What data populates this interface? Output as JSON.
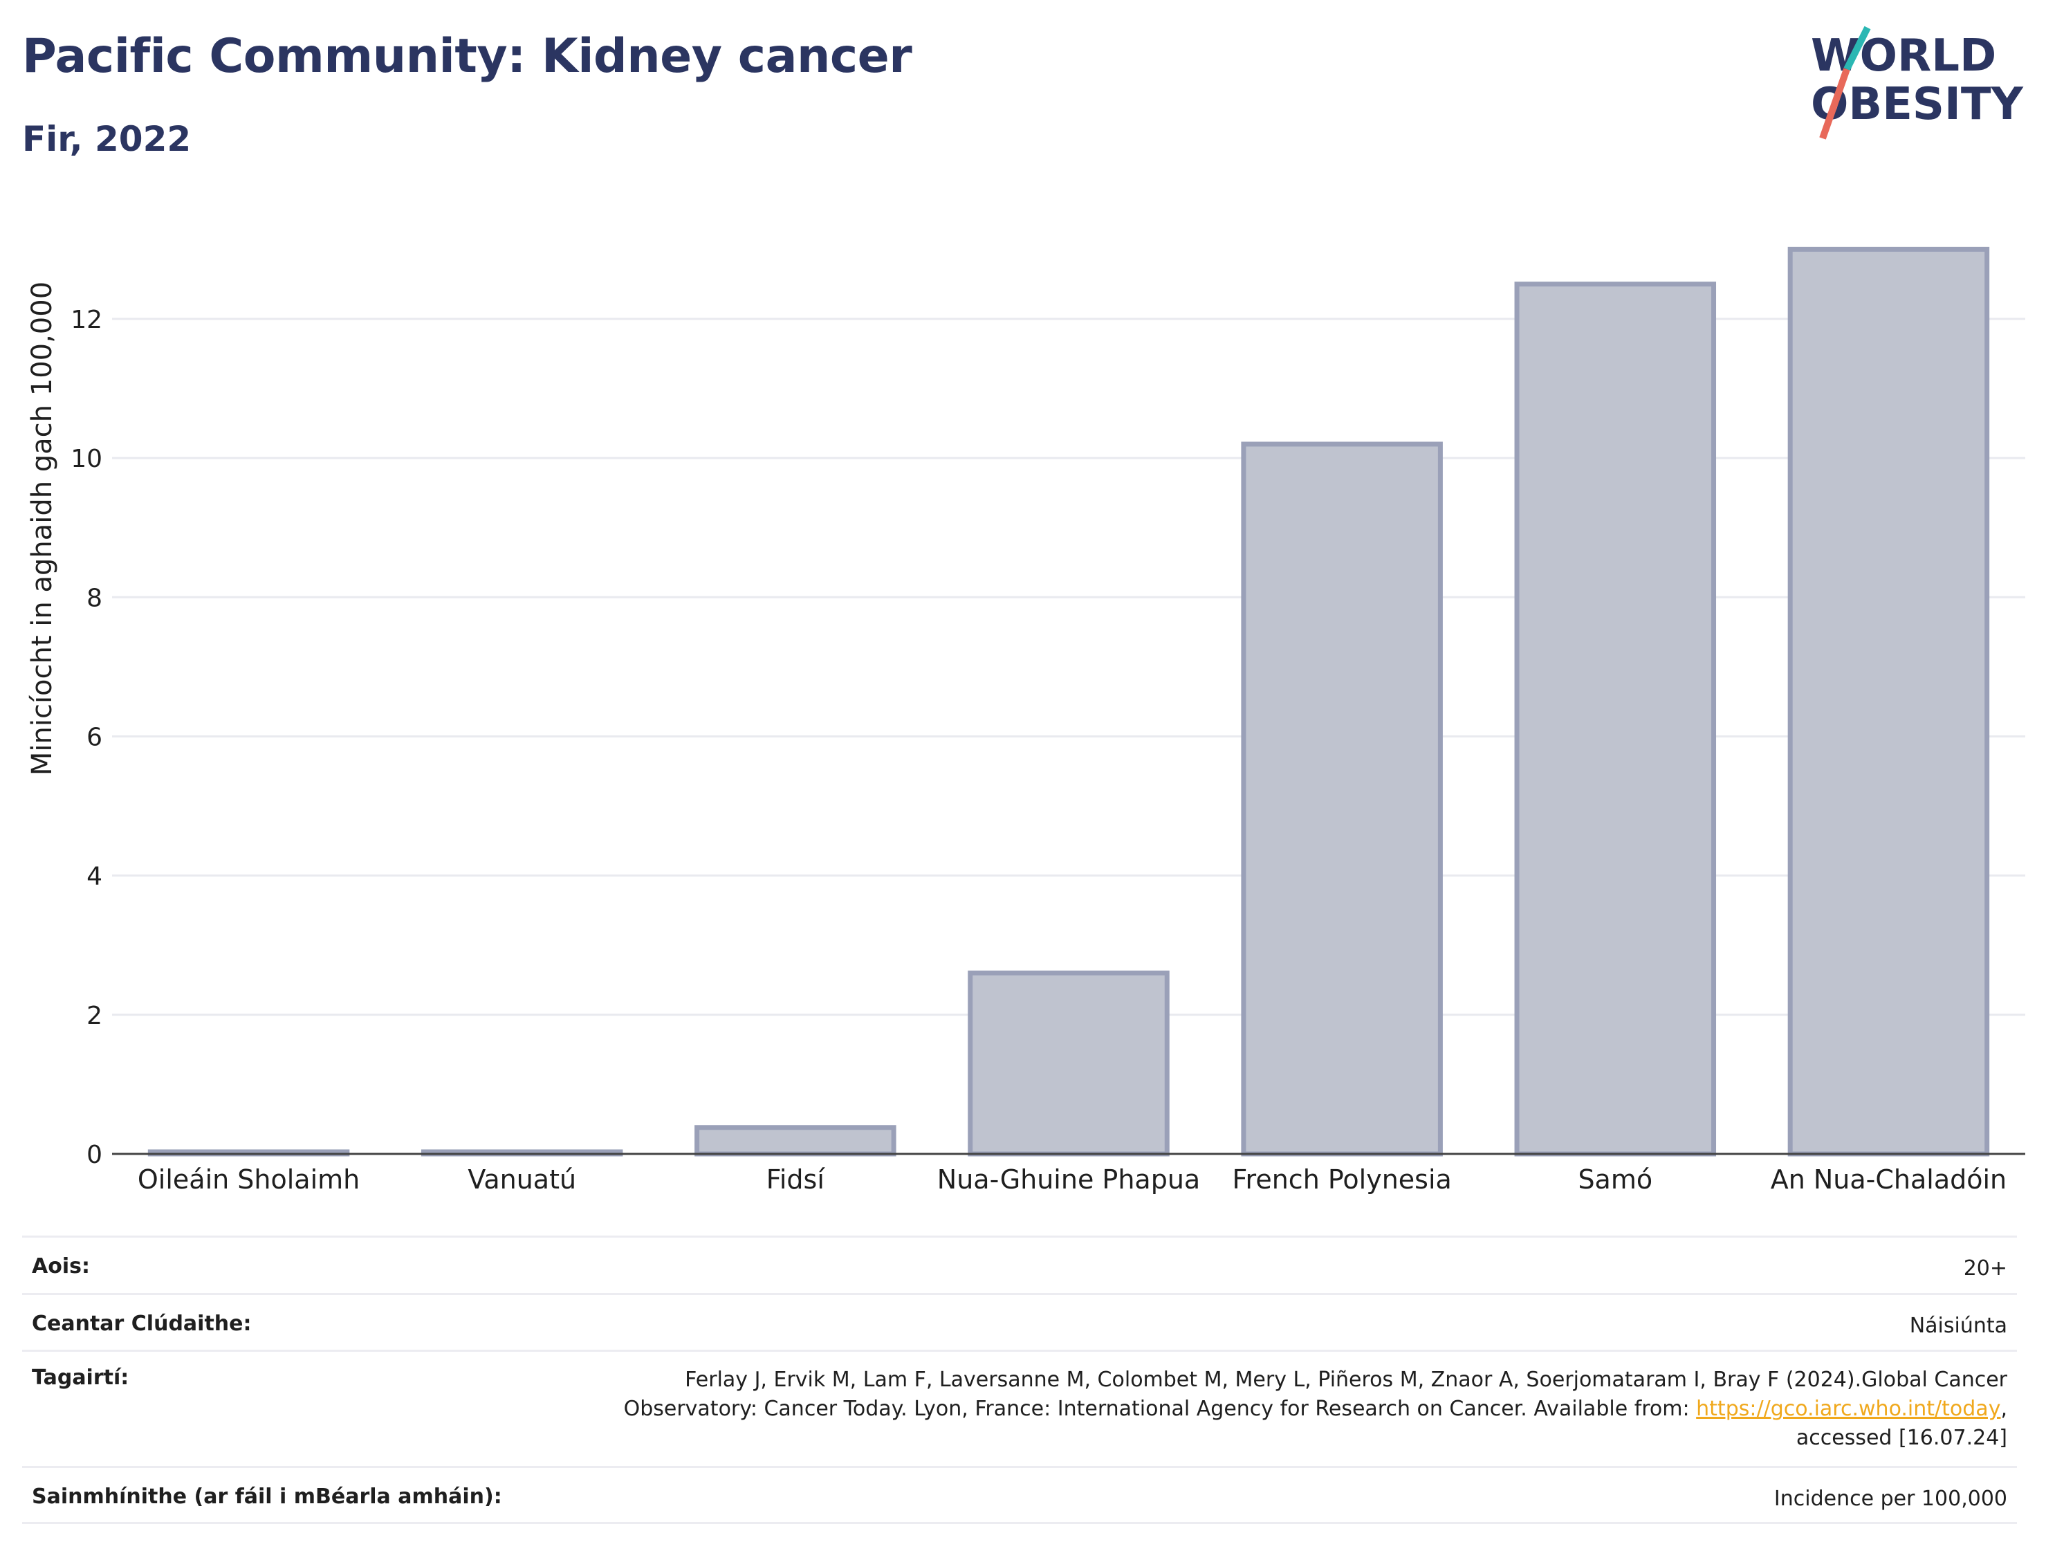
{
  "header": {
    "title": "Pacific Community: Kidney cancer",
    "subtitle": "Fir, 2022"
  },
  "logo": {
    "line1": "WORLD",
    "line2": "OBESITY",
    "accent_teal": "#2bb7b3",
    "accent_coral": "#e8695a"
  },
  "chart_data": {
    "type": "bar",
    "categories": [
      "Oileáin Sholaimh",
      "Vanuatú",
      "Fidsí",
      "Nua-Ghuine Phapua",
      "French Polynesia",
      "Samó",
      "An Nua-Chaladóin"
    ],
    "values": [
      0.03,
      0.03,
      0.38,
      2.6,
      10.2,
      12.5,
      13.0
    ],
    "ylabel": "Minicíocht in aghaidh gach 100,000",
    "xlabel": "",
    "ylim": [
      0,
      13.6
    ],
    "yticks": [
      0,
      2,
      4,
      6,
      8,
      10,
      12
    ],
    "grid": true,
    "colors": {
      "bar_fill": "#bfc3cf",
      "bar_stroke": "#9aa0b8",
      "grid": "#e9eaef",
      "axis": "#444444"
    }
  },
  "info": {
    "age_label": "Aois:",
    "age_value": "20+",
    "coverage_label": "Ceantar Clúdaithe:",
    "coverage_value": "Náisiúnta",
    "references_label": "Tagairtí:",
    "references_line1": "Ferlay J, Ervik M, Lam F, Laversanne M, Colombet M, Mery L, Piñeros M, Znaor A, Soerjomataram I, Bray F (2024).Global Cancer",
    "references_line2_pre": "Observatory: Cancer Today. Lyon, France: International Agency for Research on Cancer. Available from: ",
    "references_link": "https://gco.iarc.who.int/today",
    "references_line2_post": ",",
    "references_line3": "accessed [16.07.24]",
    "definitions_label": "Sainmhínithe (ar fáil i mBéarla amháin):",
    "definitions_value": "Incidence per 100,000"
  }
}
